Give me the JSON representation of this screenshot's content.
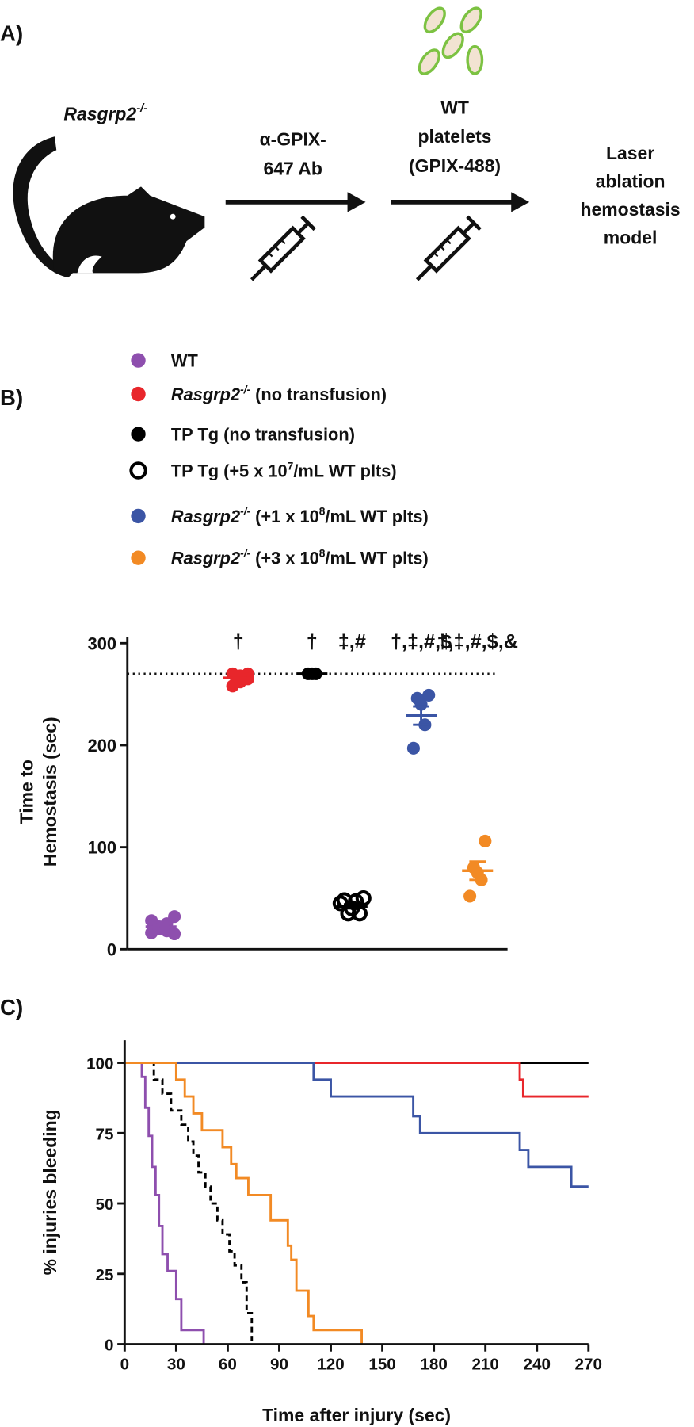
{
  "panel_labels": [
    "A)",
    "B)",
    "C)"
  ],
  "diagram": {
    "mouse_label": {
      "text": "Rasgrp2",
      "sup": "-/-"
    },
    "steps": [
      {
        "lines": [
          "α-GPIX-",
          "647 Ab"
        ]
      },
      {
        "lines": [
          "WT",
          "platelets",
          "(GPIX-488)"
        ]
      },
      {
        "lines": [
          "Laser",
          "ablation",
          "hemostasis",
          "model"
        ]
      }
    ]
  },
  "legend": [
    {
      "color": "#8e4fae",
      "filled": true,
      "parts": [
        {
          "t": "WT"
        }
      ]
    },
    {
      "color": "#e8262b",
      "filled": true,
      "parts": [
        {
          "t": "Rasgrp2",
          "i": true
        },
        {
          "t": "-/-",
          "sup": true,
          "i": true
        },
        {
          "t": " (no transfusion)"
        }
      ]
    },
    {
      "color": "#000000",
      "filled": true,
      "parts": [
        {
          "t": "TP Tg (no transfusion)"
        }
      ]
    },
    {
      "color": "#000000",
      "filled": false,
      "parts": [
        {
          "t": "TP Tg (+5 x 10"
        },
        {
          "t": "7",
          "sup": true
        },
        {
          "t": "/mL WT plts)"
        }
      ]
    },
    {
      "color": "#3b55a5",
      "filled": true,
      "parts": [
        {
          "t": "Rasgrp2",
          "i": true
        },
        {
          "t": "-/-",
          "sup": true,
          "i": true
        },
        {
          "t": " (+1 x 10"
        },
        {
          "t": "8",
          "sup": true
        },
        {
          "t": "/mL WT plts)"
        }
      ]
    },
    {
      "color": "#f28a24",
      "filled": true,
      "parts": [
        {
          "t": "Rasgrp2",
          "i": true
        },
        {
          "t": "-/-",
          "sup": true,
          "i": true
        },
        {
          "t": " (+3 x 10"
        },
        {
          "t": "8",
          "sup": true
        },
        {
          "t": "/mL WT plts)"
        }
      ]
    }
  ],
  "chart_data": [
    {
      "type": "dot",
      "ylabel": [
        "Time to",
        "Hemostasis (sec)"
      ],
      "ylim": [
        0,
        306
      ],
      "yticks": [
        0,
        100,
        200,
        300
      ],
      "reference": 270,
      "series": [
        {
          "color": "#8e4fae",
          "filled": true,
          "values": [
            32,
            28,
            25,
            22,
            20,
            18,
            16,
            15
          ],
          "mean": 22,
          "sem": 2
        },
        {
          "color": "#e8262b",
          "filled": true,
          "values": [
            270,
            270,
            268,
            262,
            258,
            265
          ],
          "mean": 266,
          "sem": 2,
          "annotation": "†"
        },
        {
          "color": "#000000",
          "filled": true,
          "values": [
            270,
            270,
            270
          ],
          "mean": 270,
          "sem": 0,
          "annotation": "†"
        },
        {
          "color": "#000000",
          "filled": false,
          "values": [
            50,
            48,
            47,
            40,
            35,
            35,
            45
          ],
          "mean": 42,
          "sem": 2,
          "annotation": "‡,#"
        },
        {
          "color": "#3b55a5",
          "filled": true,
          "values": [
            249,
            246,
            240,
            220,
            197
          ],
          "mean": 229,
          "sem": 9,
          "annotation": "†,‡,#,$"
        },
        {
          "color": "#f28a24",
          "filled": true,
          "values": [
            106,
            80,
            75,
            68,
            52
          ],
          "mean": 77,
          "sem": 9,
          "annotation": "†,‡,#,$,&"
        }
      ]
    },
    {
      "type": "step",
      "ylabel": "% injuries bleeding",
      "xlabel": "Time after injury (sec)",
      "xlim": [
        0,
        270
      ],
      "ylim": [
        0,
        108
      ],
      "xticks": [
        0,
        30,
        60,
        90,
        120,
        150,
        180,
        210,
        240,
        270
      ],
      "yticks": [
        0,
        25,
        50,
        75,
        100
      ],
      "series": [
        {
          "color": "#000000",
          "dash": false,
          "x": [
            0,
            270
          ],
          "values": [
            100,
            100
          ]
        },
        {
          "color": "#e8262b",
          "dash": false,
          "x": [
            0,
            230,
            232,
            270
          ],
          "values": [
            100,
            94,
            88,
            88
          ]
        },
        {
          "color": "#3b55a5",
          "dash": false,
          "x": [
            0,
            110,
            120,
            168,
            172,
            230,
            235,
            260,
            270
          ],
          "values": [
            100,
            94,
            88,
            81,
            75,
            69,
            63,
            56,
            56
          ]
        },
        {
          "color": "#8e4fae",
          "dash": false,
          "x": [
            0,
            10,
            12,
            14,
            16,
            18,
            20,
            22,
            25,
            30,
            33,
            46
          ],
          "values": [
            100,
            95,
            84,
            74,
            63,
            53,
            42,
            32,
            26,
            16,
            5,
            0
          ]
        },
        {
          "color": "#000000",
          "dash": true,
          "x": [
            0,
            17,
            22,
            27,
            33,
            37,
            40,
            43,
            47,
            50,
            54,
            57,
            61,
            64,
            68,
            71,
            74
          ],
          "values": [
            100,
            94,
            89,
            83,
            78,
            72,
            67,
            61,
            56,
            50,
            44,
            39,
            33,
            28,
            22,
            11,
            0
          ]
        },
        {
          "color": "#f28a24",
          "dash": false,
          "x": [
            0,
            30,
            35,
            40,
            45,
            57,
            62,
            65,
            72,
            85,
            95,
            97,
            100,
            107,
            110,
            138
          ],
          "values": [
            100,
            94,
            88,
            82,
            76,
            70,
            64,
            59,
            53,
            44,
            35,
            30,
            19,
            10,
            5,
            0
          ]
        }
      ]
    }
  ]
}
